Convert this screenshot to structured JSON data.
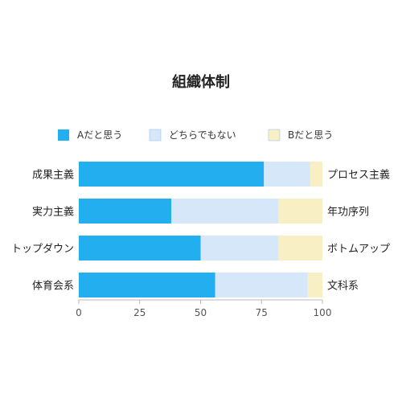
{
  "chart_data": {
    "type": "bar",
    "orientation": "horizontal",
    "stacked": true,
    "title": "組織体制",
    "categories": [
      "成果主義",
      "実力主義",
      "トップダウン",
      "体育会系"
    ],
    "right_labels": [
      "プロセス主義",
      "年功序列",
      "ボトムアップ",
      "文科系"
    ],
    "series": [
      {
        "name": "Aだと思う",
        "color": "#22aeef",
        "values": [
          76,
          38,
          50,
          56
        ]
      },
      {
        "name": "どちらでもない",
        "color": "#d6e7f9",
        "values": [
          19,
          44,
          32,
          38
        ]
      },
      {
        "name": "Bだと思う",
        "color": "#f9efc4",
        "values": [
          5,
          18,
          18,
          6
        ]
      }
    ],
    "xlim": [
      0,
      100
    ],
    "xticks": [
      "0",
      "25",
      "50",
      "75",
      "100"
    ],
    "legend_position": "top",
    "grid": false
  }
}
